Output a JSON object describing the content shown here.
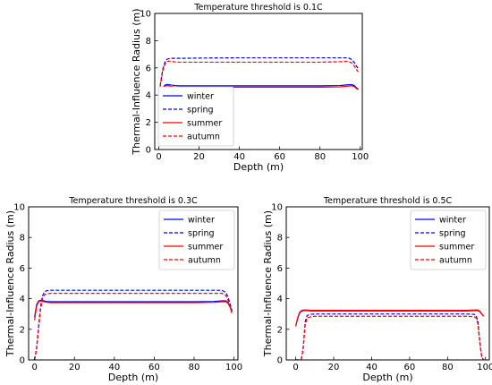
{
  "chart_data": [
    {
      "type": "line",
      "title": "Temperature threshold is 0.1C",
      "xlabel": "Depth (m)",
      "ylabel": "Thermal-Influence Radius (m)",
      "xlim": [
        -2,
        101
      ],
      "ylim": [
        0,
        10
      ],
      "xticks": [
        0,
        20,
        40,
        60,
        80,
        100
      ],
      "yticks": [
        0,
        2,
        4,
        6,
        8,
        10
      ],
      "grid": false,
      "legend_position": "lower-left",
      "series": [
        {
          "name": "winter",
          "color": "#0000ff",
          "dash": "solid",
          "x": [
            0,
            1,
            2,
            3,
            4,
            5,
            6,
            8,
            10,
            20,
            40,
            60,
            80,
            90,
            94,
            96,
            97,
            98,
            99
          ],
          "y": [
            3.6,
            4.2,
            4.55,
            4.72,
            4.78,
            4.77,
            4.74,
            4.7,
            4.68,
            4.68,
            4.68,
            4.68,
            4.68,
            4.7,
            4.76,
            4.76,
            4.7,
            4.55,
            4.45
          ]
        },
        {
          "name": "spring",
          "color": "#0000ff",
          "dash": "dashed",
          "x": [
            0,
            1,
            2,
            3,
            4,
            5,
            6,
            8,
            10,
            20,
            40,
            60,
            80,
            90,
            94,
            96,
            97,
            98,
            99
          ],
          "y": [
            3.9,
            5.0,
            5.9,
            6.4,
            6.62,
            6.68,
            6.7,
            6.7,
            6.7,
            6.72,
            6.74,
            6.74,
            6.74,
            6.74,
            6.74,
            6.6,
            6.4,
            6.15,
            5.95
          ]
        },
        {
          "name": "summer",
          "color": "#ff0000",
          "dash": "solid",
          "x": [
            0,
            1,
            2,
            3,
            4,
            5,
            6,
            8,
            10,
            20,
            40,
            60,
            80,
            90,
            94,
            96,
            97,
            98,
            99
          ],
          "y": [
            3.6,
            4.2,
            4.5,
            4.65,
            4.7,
            4.68,
            4.64,
            4.6,
            4.58,
            4.58,
            4.58,
            4.58,
            4.58,
            4.6,
            4.66,
            4.68,
            4.62,
            4.5,
            4.4
          ]
        },
        {
          "name": "autumn",
          "color": "#ff0000",
          "dash": "dashed",
          "x": [
            0,
            1,
            2,
            3,
            4,
            5,
            6,
            8,
            10,
            20,
            40,
            60,
            80,
            90,
            94,
            96,
            97,
            98,
            99
          ],
          "y": [
            3.8,
            4.9,
            5.8,
            6.25,
            6.45,
            6.5,
            6.48,
            6.44,
            6.42,
            6.42,
            6.42,
            6.42,
            6.42,
            6.45,
            6.48,
            6.35,
            6.15,
            5.9,
            5.7
          ]
        }
      ]
    },
    {
      "type": "line",
      "title": "Temperature threshold is 0.3C",
      "xlabel": "Depth (m)",
      "ylabel": "Thermal-Influence Radius (m)",
      "xlim": [
        -3,
        102
      ],
      "ylim": [
        0,
        10
      ],
      "xticks": [
        0,
        20,
        40,
        60,
        80,
        100
      ],
      "yticks": [
        0,
        2,
        4,
        6,
        8,
        10
      ],
      "grid": false,
      "legend_position": "top-right",
      "series": [
        {
          "name": "winter",
          "color": "#0000ff",
          "dash": "solid",
          "x": [
            0,
            1,
            2,
            3,
            4,
            6,
            8,
            10,
            20,
            40,
            60,
            80,
            90,
            94,
            96,
            97,
            98,
            99
          ],
          "y": [
            2.8,
            3.6,
            3.85,
            3.9,
            3.88,
            3.82,
            3.8,
            3.8,
            3.8,
            3.8,
            3.8,
            3.8,
            3.82,
            3.86,
            3.86,
            3.75,
            3.5,
            3.2
          ]
        },
        {
          "name": "spring",
          "color": "#0000ff",
          "dash": "dashed",
          "x": [
            0,
            1,
            2,
            3,
            4,
            5,
            6,
            8,
            10,
            20,
            40,
            60,
            80,
            90,
            94,
            96,
            97,
            98,
            99
          ],
          "y": [
            0.0,
            0.8,
            2.2,
            3.5,
            4.2,
            4.45,
            4.52,
            4.55,
            4.55,
            4.55,
            4.55,
            4.55,
            4.55,
            4.55,
            4.55,
            4.4,
            4.1,
            3.7,
            3.2
          ]
        },
        {
          "name": "summer",
          "color": "#ff0000",
          "dash": "solid",
          "x": [
            0,
            1,
            2,
            3,
            4,
            6,
            8,
            10,
            20,
            40,
            60,
            80,
            90,
            94,
            96,
            97,
            98,
            99
          ],
          "y": [
            2.6,
            3.5,
            3.8,
            3.85,
            3.82,
            3.76,
            3.74,
            3.74,
            3.74,
            3.74,
            3.74,
            3.74,
            3.76,
            3.8,
            3.8,
            3.7,
            3.45,
            3.15
          ]
        },
        {
          "name": "autumn",
          "color": "#ff0000",
          "dash": "dashed",
          "x": [
            0,
            1,
            2,
            3,
            4,
            5,
            6,
            8,
            10,
            20,
            40,
            60,
            80,
            90,
            94,
            96,
            97,
            98,
            99
          ],
          "y": [
            0.0,
            0.7,
            2.0,
            3.3,
            4.0,
            4.25,
            4.32,
            4.35,
            4.35,
            4.35,
            4.35,
            4.35,
            4.35,
            4.35,
            4.35,
            4.2,
            3.9,
            3.5,
            3.0
          ]
        }
      ]
    },
    {
      "type": "line",
      "title": "Temperature threshold is 0.5C",
      "xlabel": "Depth (m)",
      "ylabel": "Thermal-Influence Radius (m)",
      "xlim": [
        -5,
        102
      ],
      "ylim": [
        0,
        10
      ],
      "xticks": [
        0,
        20,
        40,
        60,
        80,
        100
      ],
      "yticks": [
        0,
        2,
        4,
        6,
        8,
        10
      ],
      "grid": false,
      "legend_position": "top-right",
      "series": [
        {
          "name": "winter",
          "color": "#0000ff",
          "dash": "solid",
          "x": [
            0,
            1,
            2,
            3,
            4,
            6,
            8,
            10,
            20,
            40,
            60,
            80,
            90,
            94,
            96,
            97,
            98,
            99
          ],
          "y": [
            2.2,
            2.7,
            3.05,
            3.18,
            3.22,
            3.22,
            3.2,
            3.2,
            3.2,
            3.2,
            3.2,
            3.2,
            3.2,
            3.22,
            3.22,
            3.15,
            3.0,
            2.85
          ]
        },
        {
          "name": "spring",
          "color": "#0000ff",
          "dash": "dashed",
          "x": [
            0,
            1,
            2,
            3,
            4,
            5,
            6,
            8,
            10,
            20,
            40,
            60,
            80,
            90,
            94,
            95,
            96,
            97,
            98,
            99
          ],
          "y": [
            0.0,
            0.0,
            0.0,
            0.05,
            0.9,
            2.5,
            2.9,
            2.98,
            3.0,
            3.0,
            3.0,
            3.0,
            3.0,
            3.0,
            2.98,
            2.9,
            2.5,
            1.2,
            0.2,
            0.0
          ]
        },
        {
          "name": "summer",
          "color": "#ff0000",
          "dash": "solid",
          "x": [
            0,
            1,
            2,
            3,
            4,
            6,
            8,
            10,
            20,
            40,
            60,
            80,
            90,
            94,
            96,
            97,
            98,
            99
          ],
          "y": [
            2.2,
            2.75,
            3.1,
            3.22,
            3.26,
            3.26,
            3.24,
            3.24,
            3.24,
            3.24,
            3.24,
            3.24,
            3.24,
            3.26,
            3.26,
            3.18,
            3.02,
            2.85
          ]
        },
        {
          "name": "autumn",
          "color": "#ff0000",
          "dash": "dashed",
          "x": [
            0,
            1,
            2,
            3,
            4,
            5,
            6,
            8,
            10,
            20,
            40,
            60,
            80,
            90,
            94,
            95,
            96,
            97,
            98,
            99
          ],
          "y": [
            0.0,
            0.0,
            0.0,
            0.05,
            0.8,
            2.3,
            2.75,
            2.82,
            2.85,
            2.85,
            2.85,
            2.85,
            2.85,
            2.85,
            2.82,
            2.75,
            2.35,
            1.1,
            0.2,
            0.0
          ]
        }
      ]
    }
  ]
}
